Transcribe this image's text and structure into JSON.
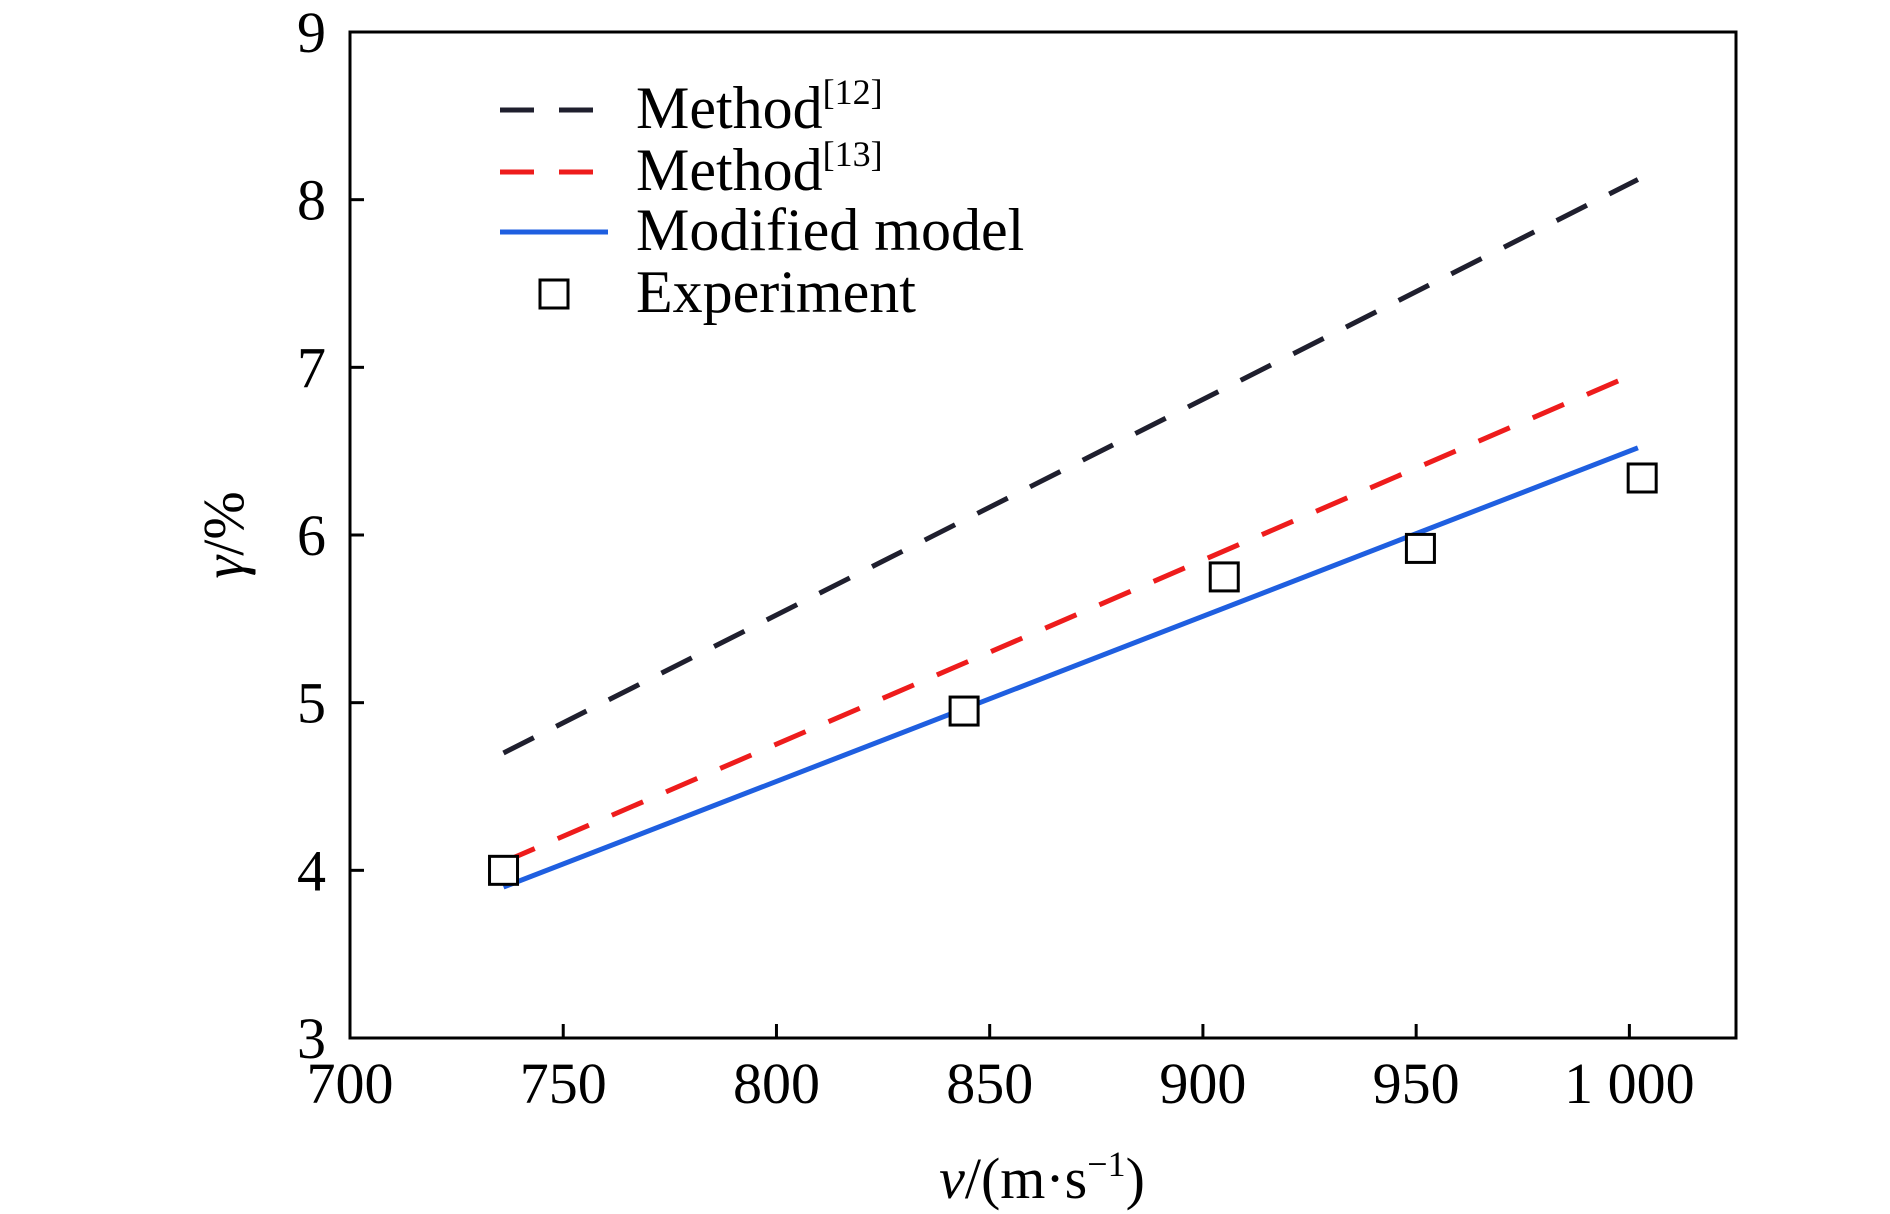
{
  "chart_data": {
    "type": "line",
    "ylabel": {
      "symbol": "γ",
      "unit": "/%"
    },
    "xlabel": {
      "symbol": "v",
      "unit": "/(m·s",
      "exponent": "−1",
      "close": ")"
    },
    "xlim": [
      700,
      1025
    ],
    "ylim": [
      3,
      9
    ],
    "x_ticks": [
      700,
      750,
      800,
      850,
      900,
      950,
      1000
    ],
    "x_tick_labels": [
      "700",
      "750",
      "800",
      "850",
      "900",
      "950",
      "1 000"
    ],
    "y_ticks": [
      3,
      4,
      5,
      6,
      7,
      8,
      9
    ],
    "y_tick_labels": [
      "3",
      "4",
      "5",
      "6",
      "7",
      "8",
      "9"
    ],
    "grid": false,
    "legend_position": "top-left",
    "series": [
      {
        "name": "Method",
        "ref": "[12]",
        "style": "dashed",
        "color": "#1f1f2e",
        "points": [
          [
            736,
            4.7
          ],
          [
            1002,
            8.12
          ]
        ]
      },
      {
        "name": "Method",
        "ref": "[13]",
        "style": "dashed",
        "color": "#ee1c1c",
        "points": [
          [
            736,
            4.05
          ],
          [
            1002,
            6.97
          ]
        ]
      },
      {
        "name": "Modified model",
        "style": "solid",
        "color": "#1f5fe0",
        "points": [
          [
            736,
            3.9
          ],
          [
            1002,
            6.52
          ]
        ]
      },
      {
        "name": "Experiment",
        "style": "markers",
        "marker": "square",
        "color": "#000000",
        "points": [
          [
            736,
            4.0
          ],
          [
            844,
            4.95
          ],
          [
            905,
            5.75
          ],
          [
            951,
            5.92
          ],
          [
            1003,
            6.34
          ]
        ]
      }
    ]
  }
}
